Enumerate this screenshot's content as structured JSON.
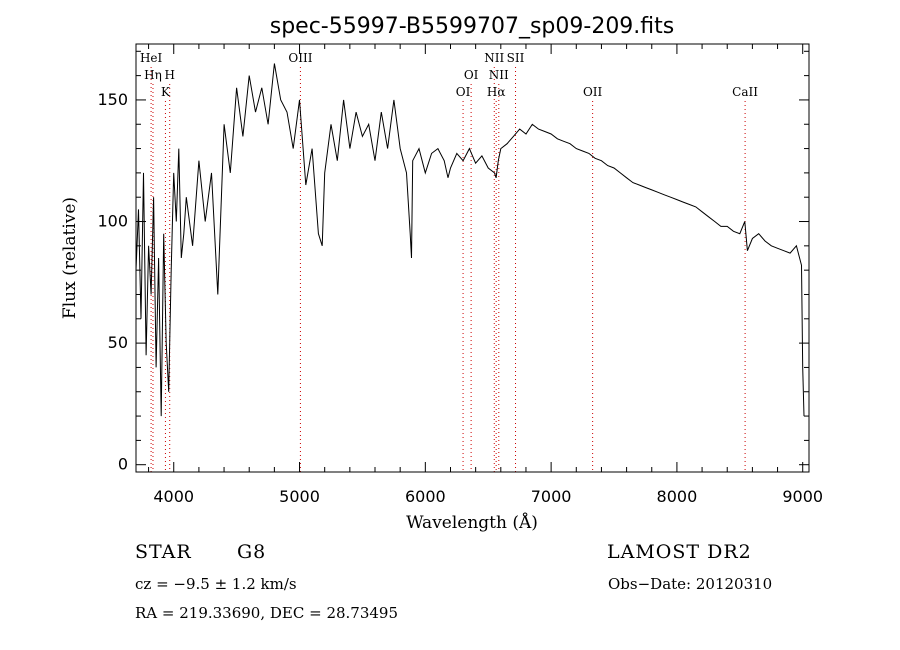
{
  "chart_data": {
    "type": "line",
    "title": "spec-55997-B5599707_sp09-209.fits",
    "xlabel": "Wavelength (Å)",
    "ylabel": "Flux (relative)",
    "xlim": [
      3700,
      9050
    ],
    "ylim": [
      -3,
      173
    ],
    "xticks": [
      4000,
      5000,
      6000,
      7000,
      8000,
      9000
    ],
    "yticks": [
      0,
      50,
      100,
      150
    ],
    "series": [
      {
        "name": "flux",
        "x": [
          3700,
          3720,
          3740,
          3760,
          3780,
          3800,
          3820,
          3840,
          3860,
          3880,
          3900,
          3920,
          3940,
          3960,
          3980,
          4000,
          4020,
          4040,
          4060,
          4080,
          4100,
          4150,
          4200,
          4250,
          4300,
          4350,
          4400,
          4450,
          4500,
          4550,
          4600,
          4650,
          4700,
          4750,
          4800,
          4850,
          4900,
          4950,
          5000,
          5050,
          5100,
          5150,
          5180,
          5200,
          5250,
          5300,
          5350,
          5400,
          5450,
          5500,
          5550,
          5600,
          5650,
          5700,
          5750,
          5800,
          5850,
          5880,
          5890,
          5900,
          5950,
          6000,
          6050,
          6100,
          6150,
          6180,
          6200,
          6250,
          6300,
          6350,
          6400,
          6450,
          6500,
          6550,
          6563,
          6580,
          6600,
          6650,
          6700,
          6750,
          6800,
          6850,
          6900,
          6950,
          7000,
          7050,
          7100,
          7150,
          7200,
          7250,
          7300,
          7350,
          7400,
          7450,
          7500,
          7550,
          7600,
          7650,
          7700,
          7750,
          7800,
          7850,
          7900,
          7950,
          8000,
          8050,
          8100,
          8150,
          8200,
          8250,
          8300,
          8350,
          8400,
          8450,
          8500,
          8540,
          8560,
          8600,
          8650,
          8700,
          8750,
          8800,
          8850,
          8900,
          8950,
          8990,
          9000,
          9010
        ],
        "values": [
          80,
          105,
          60,
          120,
          45,
          90,
          70,
          110,
          40,
          85,
          20,
          95,
          50,
          30,
          80,
          120,
          100,
          130,
          85,
          95,
          110,
          90,
          125,
          100,
          120,
          70,
          140,
          120,
          155,
          135,
          160,
          145,
          155,
          140,
          165,
          150,
          145,
          130,
          150,
          115,
          130,
          95,
          90,
          120,
          140,
          125,
          150,
          130,
          145,
          135,
          140,
          125,
          145,
          130,
          150,
          130,
          120,
          95,
          85,
          125,
          130,
          120,
          128,
          130,
          125,
          118,
          122,
          128,
          125,
          130,
          124,
          127,
          122,
          120,
          118,
          125,
          130,
          132,
          135,
          138,
          136,
          140,
          138,
          137,
          136,
          134,
          133,
          132,
          130,
          129,
          128,
          126,
          125,
          123,
          122,
          120,
          118,
          116,
          115,
          114,
          113,
          112,
          111,
          110,
          109,
          108,
          107,
          106,
          104,
          102,
          100,
          98,
          98,
          96,
          95,
          100,
          88,
          93,
          95,
          92,
          90,
          89,
          88,
          87,
          90,
          82,
          40,
          20
        ]
      }
    ],
    "line_markers": [
      {
        "label": "HeI",
        "x": 3820,
        "row": 1
      },
      {
        "label": "Hη",
        "x": 3835,
        "row": 2
      },
      {
        "label": "H",
        "x": 3968,
        "row": 2
      },
      {
        "label": "K",
        "x": 3934,
        "row": 3
      },
      {
        "label": "OIII",
        "x": 5007,
        "row": 1
      },
      {
        "label": "OI",
        "x": 6364,
        "row": 2
      },
      {
        "label": "OI",
        "x": 6300,
        "row": 3
      },
      {
        "label": "NII",
        "x": 6548,
        "row": 1
      },
      {
        "label": "SII",
        "x": 6717,
        "row": 1
      },
      {
        "label": "NII",
        "x": 6584,
        "row": 2
      },
      {
        "label": "Hα",
        "x": 6563,
        "row": 3
      },
      {
        "label": "OII",
        "x": 7330,
        "row": 3
      },
      {
        "label": "CaII",
        "x": 8542,
        "row": 3
      }
    ]
  },
  "info": {
    "class_text": "STAR",
    "subclass_text": "G8",
    "survey_text": "LAMOST DR2",
    "cz_text": "cz = −9.5 ± 1.2 km/s",
    "obs_date_text": "Obs−Date: 20120310",
    "radec_text": "RA = 219.33690, DEC =  28.73495"
  },
  "colors": {
    "spectrum": "#000000",
    "marker_line": "#cc0000",
    "axis": "#000000"
  }
}
